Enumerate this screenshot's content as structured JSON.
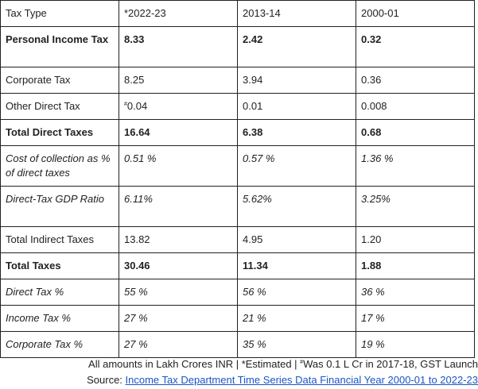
{
  "table": {
    "header": [
      "Tax Type",
      "*2022-23",
      "2013-14",
      "2000-01"
    ],
    "rows": [
      {
        "cells": [
          "Personal Income Tax",
          "8.33",
          "2.42",
          "0.32"
        ],
        "style": "bold",
        "tall": true
      },
      {
        "cells": [
          "Corporate Tax",
          "8.25",
          "3.94",
          "0.36"
        ],
        "style": "normal",
        "tall": false
      },
      {
        "cells": [
          "Other Direct Tax",
          "0.04",
          "0.01",
          "0.008"
        ],
        "style": "normal",
        "tall": false,
        "first_value_mark": "#"
      },
      {
        "cells": [
          "Total Direct Taxes",
          "16.64",
          "6.38",
          "0.68"
        ],
        "style": "bold",
        "tall": false
      },
      {
        "cells": [
          "Cost of collection as % of direct taxes",
          "0.51 %",
          "0.57 %",
          "1.36 %"
        ],
        "style": "italic",
        "tall": true
      },
      {
        "cells": [
          "Direct-Tax GDP Ratio",
          "6.11%",
          "5.62%",
          "3.25%"
        ],
        "style": "italic",
        "tall": true
      },
      {
        "cells": [
          "Total Indirect Taxes",
          "13.82",
          "4.95",
          "1.20"
        ],
        "style": "normal",
        "tall": false
      },
      {
        "cells": [
          "Total Taxes",
          "30.46",
          "11.34",
          "1.88"
        ],
        "style": "bold",
        "tall": false
      },
      {
        "cells": [
          "Direct Tax %",
          "55 %",
          "56 %",
          "36 %"
        ],
        "style": "italic",
        "tall": false
      },
      {
        "cells": [
          "Income Tax %",
          "27 %",
          "21 %",
          "17 %"
        ],
        "style": "italic",
        "tall": false
      },
      {
        "cells": [
          "Corporate Tax %",
          "27 %",
          "35 %",
          "19 %"
        ],
        "style": "italic",
        "tall": false
      }
    ]
  },
  "footnote": {
    "prefix": "All amounts in Lakh Crores INR | *Estimated | ",
    "mark": "#",
    "suffix": "Was 0.1 L Cr in 2017-18, GST Launch"
  },
  "source": {
    "label": "Source: ",
    "link_text": "Income Tax Department Time Series Data Financial Year 2000-01 to 2022-23",
    "link_color": "#1a55c8"
  }
}
